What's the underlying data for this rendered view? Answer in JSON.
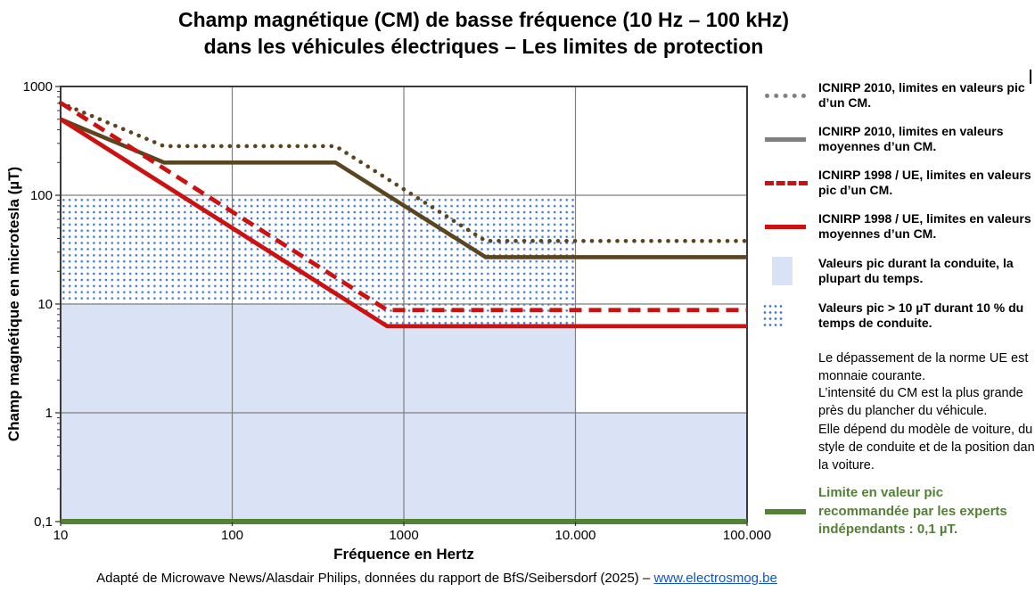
{
  "title": {
    "line1": "Champ magnétique (CM) de basse fréquence (10 Hz – 100 kHz)",
    "line2": "dans les véhicules électriques – Les limites de protection"
  },
  "chart_data": {
    "type": "line",
    "x_axis": {
      "label": "Fréquence en Hertz",
      "scale": "log",
      "range": [
        10,
        100000
      ],
      "tick_labels": [
        "10",
        "100",
        "1000",
        "10.000",
        "100.000"
      ],
      "tick_values": [
        10,
        100,
        1000,
        10000,
        100000
      ]
    },
    "y_axis": {
      "label": "Champ magnétique en microtesla (µT)",
      "scale": "log",
      "range": [
        0.1,
        1000
      ],
      "tick_labels": [
        "1000",
        "100",
        "10",
        "1",
        "0,1"
      ],
      "tick_values": [
        1000,
        100,
        10,
        1,
        0.1
      ]
    },
    "gridlines": {
      "x_values": [
        100,
        1000,
        10000
      ],
      "y_values": [
        1,
        10,
        100
      ]
    },
    "series": [
      {
        "name": "ICNIRP 2010, limites en valeurs pic d’un CM.",
        "style": "dotted",
        "color": "#5b4420",
        "points": [
          [
            10,
            707
          ],
          [
            40,
            283
          ],
          [
            400,
            283
          ],
          [
            3000,
            38
          ],
          [
            100000,
            38
          ]
        ]
      },
      {
        "name": "ICNIRP 2010, limites en valeurs moyennes d’un CM.",
        "style": "solid",
        "color": "#5b4420",
        "points": [
          [
            10,
            500
          ],
          [
            40,
            200
          ],
          [
            400,
            200
          ],
          [
            3000,
            27
          ],
          [
            100000,
            27
          ]
        ]
      },
      {
        "name": "ICNIRP 1998 / UE, limites en valeurs pic d’un CM.",
        "style": "dashed",
        "color": "#cc1111",
        "points": [
          [
            10,
            707
          ],
          [
            800,
            8.8
          ],
          [
            100000,
            8.8
          ]
        ]
      },
      {
        "name": "ICNIRP 1998 / UE, limites en valeurs moyennes d’un CM.",
        "style": "solid",
        "color": "#cc1111",
        "points": [
          [
            10,
            500
          ],
          [
            800,
            6.25
          ],
          [
            100000,
            6.25
          ]
        ]
      },
      {
        "name": "Limite en valeur pic recommandée par les experts indépendants",
        "style": "solid",
        "color": "#538135",
        "points": [
          [
            10,
            0.1
          ],
          [
            100000,
            0.1
          ]
        ]
      }
    ],
    "regions": [
      {
        "name": "valeurs-pic-la-plupart-du-temps",
        "fill": "#dae3f5",
        "points": [
          [
            10,
            10
          ],
          [
            500,
            10
          ],
          [
            800,
            6.25
          ],
          [
            10000,
            6.25
          ],
          [
            10000,
            1
          ],
          [
            100000,
            1
          ],
          [
            100000,
            0.1
          ],
          [
            10,
            0.1
          ]
        ]
      },
      {
        "name": "valeurs-pic-sup-10uT-10pct",
        "pattern": "blue-dots",
        "dot_color": "#3e74d6",
        "points": [
          [
            10,
            100
          ],
          [
            10000,
            100
          ],
          [
            10000,
            6.25
          ],
          [
            800,
            6.25
          ],
          [
            500,
            10
          ],
          [
            10,
            10
          ]
        ]
      }
    ]
  },
  "legend": {
    "items": [
      {
        "label": "ICNIRP 2010, limites en valeurs pic d’un CM.",
        "swatch": "gray-dotted-line",
        "swatch_color": "#808080"
      },
      {
        "label": "ICNIRP 2010, limites en valeurs moyennes d’un CM.",
        "swatch": "gray-solid-line",
        "swatch_color": "#808080"
      },
      {
        "label": "ICNIRP 1998 / UE, limites en valeurs pic d’un CM.",
        "swatch": "red-dashed-line",
        "swatch_color": "#cc1111"
      },
      {
        "label": "ICNIRP 1998 / UE, limites en valeurs moyennes d’un CM.",
        "swatch": "red-solid-line",
        "swatch_color": "#cc1111"
      },
      {
        "label": "Valeurs pic durant la conduite, la plupart du temps.",
        "swatch": "light-blue-box",
        "swatch_color": "#dae3f5"
      },
      {
        "label": "Valeurs pic > 10 µT durant 10 % du temps de conduite.",
        "swatch": "blue-dotted-box",
        "swatch_color": "#3e74d6"
      }
    ],
    "notes": [
      "Le dépassement de la norme UE est monnaie courante.",
      "L’intensité du CM est la plus grande près du plancher du véhicule.",
      "Elle dépend du modèle de voiture, du style de conduite et de la position dans la voiture."
    ],
    "recommendation": {
      "label": "Limite en valeur pic recommandée par les experts indépendants : 0,1 µT.",
      "swatch": "green-solid-line",
      "swatch_color": "#538135"
    }
  },
  "footer": {
    "text_before_link": "Adapté de Microwave News/Alasdair Philips, données du rapport de BfS/Seibersdorf (2025) – ",
    "link": "www.electrosmog.be"
  }
}
